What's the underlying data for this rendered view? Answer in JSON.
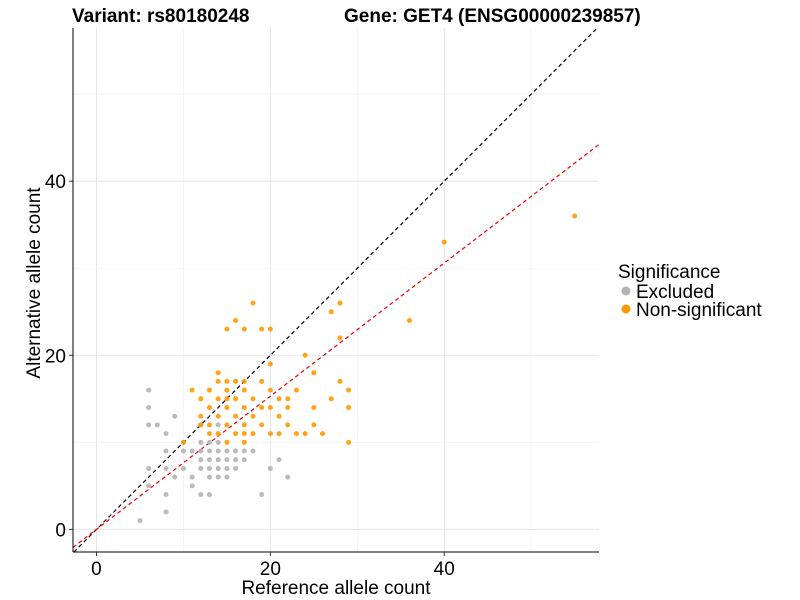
{
  "chart_data": {
    "type": "scatter",
    "title_left": "Variant: rs80180248",
    "title_right": "Gene: GET4 (ENSG00000239857)",
    "xlabel": "Reference allele count",
    "ylabel": "Alternative allele count",
    "xlim": [
      -2.7,
      57.8
    ],
    "ylim": [
      -2.6,
      57.6
    ],
    "xticks": [
      0,
      20,
      40
    ],
    "yticks": [
      0,
      20,
      40
    ],
    "grid": true,
    "legend": {
      "title": "Significance",
      "position": "right",
      "items": [
        {
          "label": "Excluded",
          "color": "#b3b3b3"
        },
        {
          "label": "Non-significant",
          "color": "#ff9900"
        }
      ]
    },
    "reference_lines": [
      {
        "name": "identity-line",
        "intercept": 0,
        "slope": 1,
        "color": "#000000",
        "style": "dashed"
      },
      {
        "name": "fit-line",
        "intercept": 0,
        "slope": 0.765,
        "color": "#ee0000",
        "style": "dashed"
      }
    ],
    "series": [
      {
        "name": "Excluded",
        "color": "#b3b3b3",
        "points": [
          [
            5,
            1
          ],
          [
            6,
            5
          ],
          [
            6,
            7
          ],
          [
            6,
            12
          ],
          [
            6,
            14
          ],
          [
            6,
            16
          ],
          [
            7,
            12
          ],
          [
            8,
            2
          ],
          [
            8,
            4
          ],
          [
            8,
            7
          ],
          [
            8,
            9
          ],
          [
            8,
            11
          ],
          [
            9,
            6
          ],
          [
            9,
            13
          ],
          [
            10,
            7
          ],
          [
            10,
            9
          ],
          [
            10,
            10
          ],
          [
            11,
            5
          ],
          [
            11,
            6
          ],
          [
            11,
            9
          ],
          [
            12,
            4
          ],
          [
            12,
            7
          ],
          [
            12,
            8
          ],
          [
            12,
            9
          ],
          [
            12,
            10
          ],
          [
            12,
            12
          ],
          [
            13,
            4
          ],
          [
            13,
            6
          ],
          [
            13,
            7
          ],
          [
            13,
            8
          ],
          [
            13,
            9
          ],
          [
            13,
            10
          ],
          [
            14,
            6
          ],
          [
            14,
            7
          ],
          [
            14,
            8
          ],
          [
            14,
            9
          ],
          [
            14,
            10
          ],
          [
            14,
            12
          ],
          [
            15,
            6
          ],
          [
            15,
            7
          ],
          [
            15,
            8
          ],
          [
            15,
            9
          ],
          [
            16,
            7
          ],
          [
            16,
            8
          ],
          [
            16,
            9
          ],
          [
            17,
            8
          ],
          [
            17,
            9
          ],
          [
            18,
            9
          ],
          [
            19,
            4
          ],
          [
            20,
            7
          ],
          [
            21,
            8
          ],
          [
            22,
            6
          ]
        ]
      },
      {
        "name": "Non-significant",
        "color": "#ff9900",
        "points": [
          [
            10,
            10
          ],
          [
            11,
            16
          ],
          [
            12,
            12
          ],
          [
            12,
            13
          ],
          [
            12,
            15
          ],
          [
            13,
            11
          ],
          [
            13,
            12
          ],
          [
            13,
            14
          ],
          [
            13,
            16
          ],
          [
            14,
            11
          ],
          [
            14,
            13
          ],
          [
            14,
            15
          ],
          [
            14,
            17
          ],
          [
            14,
            18
          ],
          [
            15,
            10
          ],
          [
            15,
            12
          ],
          [
            15,
            14
          ],
          [
            15,
            15
          ],
          [
            15,
            16
          ],
          [
            15,
            17
          ],
          [
            15,
            23
          ],
          [
            16,
            11
          ],
          [
            16,
            13
          ],
          [
            16,
            15
          ],
          [
            16,
            17
          ],
          [
            16,
            24
          ],
          [
            17,
            10
          ],
          [
            17,
            11
          ],
          [
            17,
            12
          ],
          [
            17,
            14
          ],
          [
            17,
            16
          ],
          [
            17,
            17
          ],
          [
            17,
            23
          ],
          [
            18,
            11
          ],
          [
            18,
            13
          ],
          [
            18,
            15
          ],
          [
            18,
            26
          ],
          [
            19,
            12
          ],
          [
            19,
            14
          ],
          [
            19,
            17
          ],
          [
            19,
            23
          ],
          [
            20,
            11
          ],
          [
            20,
            14
          ],
          [
            20,
            16
          ],
          [
            20,
            19
          ],
          [
            20,
            23
          ],
          [
            21,
            11
          ],
          [
            21,
            13
          ],
          [
            21,
            15
          ],
          [
            22,
            12
          ],
          [
            22,
            14
          ],
          [
            22,
            15
          ],
          [
            23,
            11
          ],
          [
            23,
            16
          ],
          [
            24,
            11
          ],
          [
            24,
            20
          ],
          [
            25,
            12
          ],
          [
            25,
            14
          ],
          [
            25,
            18
          ],
          [
            26,
            11
          ],
          [
            27,
            15
          ],
          [
            27,
            25
          ],
          [
            28,
            17
          ],
          [
            28,
            22
          ],
          [
            28,
            26
          ],
          [
            29,
            10
          ],
          [
            29,
            14
          ],
          [
            29,
            16
          ],
          [
            36,
            24
          ],
          [
            40,
            33
          ],
          [
            55,
            36
          ]
        ]
      }
    ]
  }
}
